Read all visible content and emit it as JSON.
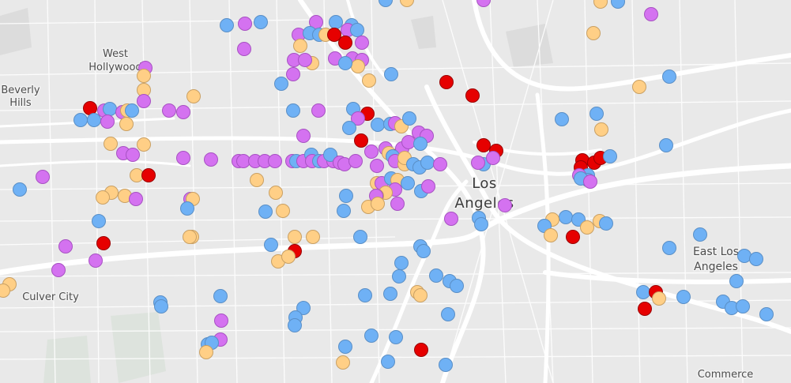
{
  "map": {
    "background_color": "#e9e9e9",
    "road_color": "#ffffff",
    "park_color": "#dfe4df",
    "labels": {
      "beverly_hills": [
        "Beverly",
        "Hills"
      ],
      "west_hollywood": [
        "West",
        "Hollywood"
      ],
      "culver_city": "Culver City",
      "los_angeles": [
        "Los",
        "Angeles"
      ],
      "east_los_angeles": [
        "East Los",
        "Angeles"
      ],
      "commerce": "Commerce"
    },
    "marker_styles": {
      "red": {
        "fill": "#e60000",
        "stroke": "#9a0000"
      },
      "blue": {
        "fill": "#6fb1f5",
        "stroke": "#5a8fc6"
      },
      "purple": {
        "fill": "#d472f0",
        "stroke": "#a752c2"
      },
      "orange": {
        "fill": "#ffcf86",
        "stroke": "#c9a064"
      }
    }
  }
}
